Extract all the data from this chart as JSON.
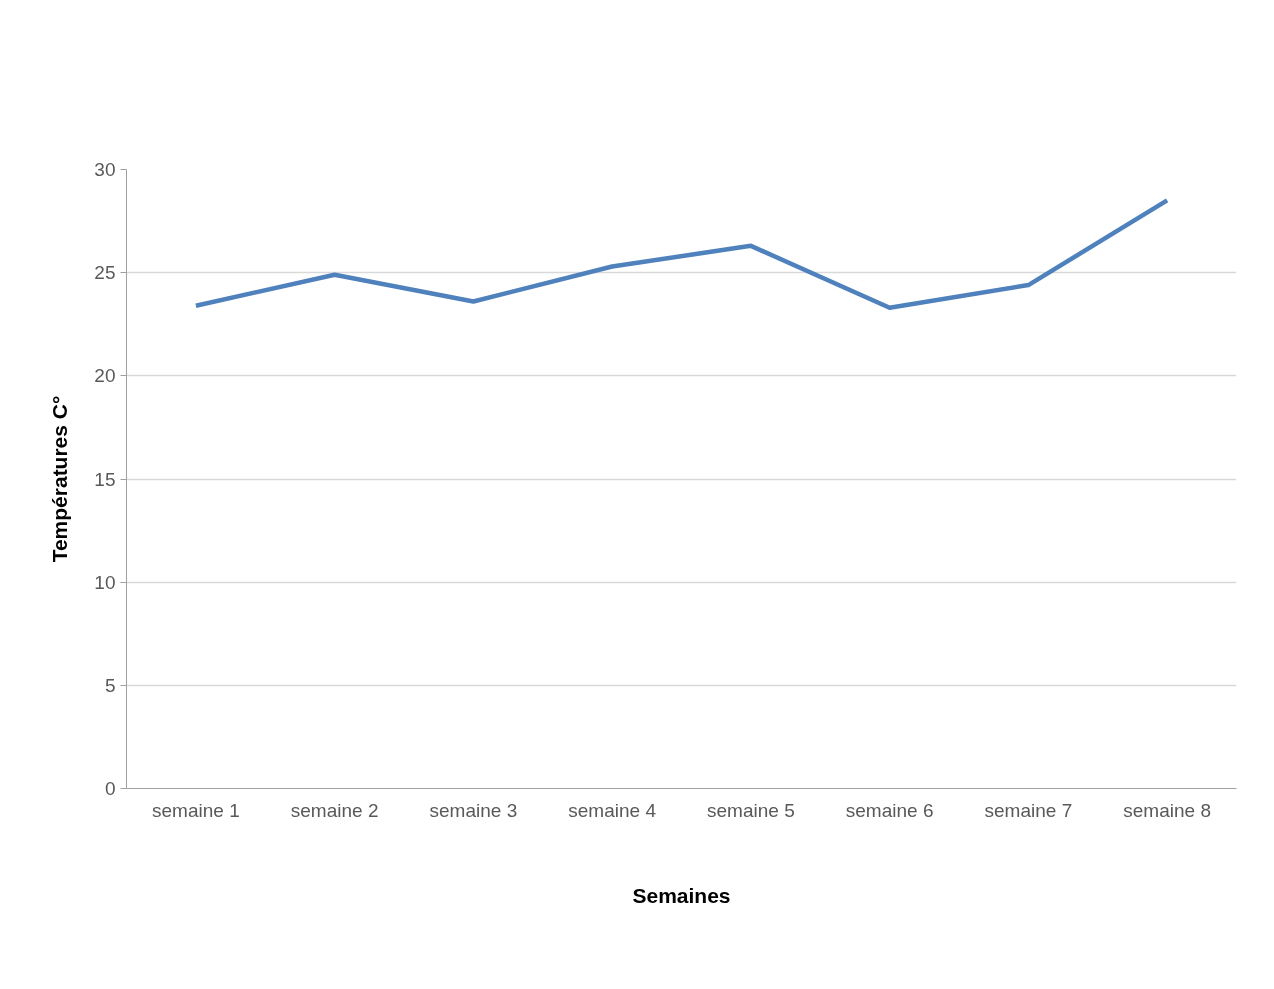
{
  "chart_data": {
    "type": "line",
    "xlabel": "Semaines",
    "ylabel": "Températures C°",
    "categories": [
      "semaine 1",
      "semaine 2",
      "semaine 3",
      "semaine 4",
      "semaine 5",
      "semaine 6",
      "semaine 7",
      "semaine 8"
    ],
    "series": [
      {
        "color": "#4f81bd",
        "values": [
          23.4,
          24.9,
          23.6,
          25.3,
          26.3,
          23.3,
          24.4,
          28.5
        ]
      }
    ],
    "ylim": [
      0,
      30
    ],
    "yticks": [
      0,
      5,
      10,
      15,
      20,
      25,
      30
    ],
    "grid": "y",
    "marker": "none",
    "line_style": "solid"
  }
}
